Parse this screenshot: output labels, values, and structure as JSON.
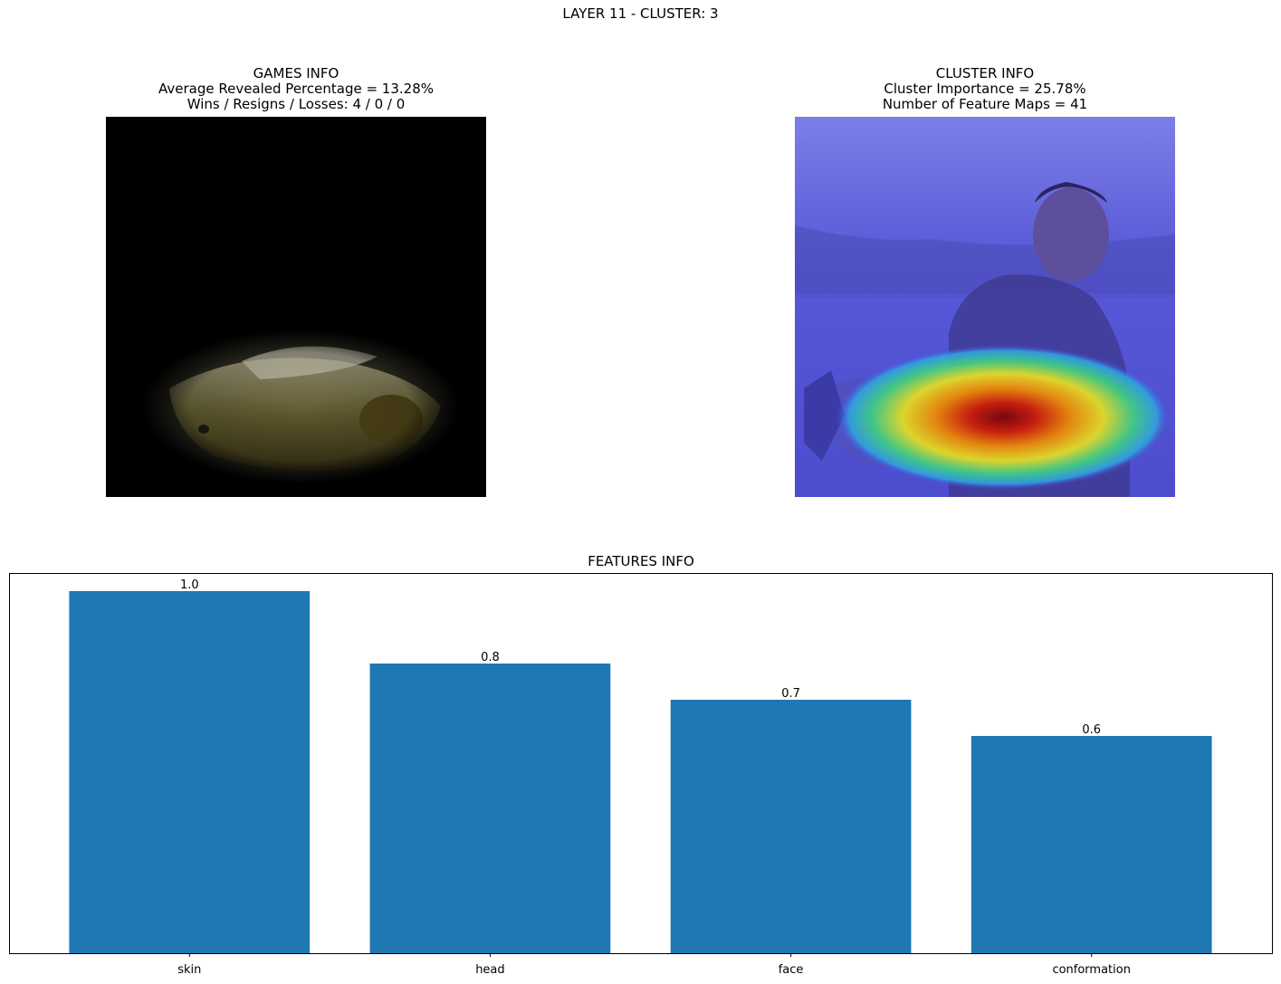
{
  "suptitle": "LAYER 11 - CLUSTER: 3",
  "games_info": {
    "title": "GAMES INFO",
    "line1": "Average Revealed Percentage = 13.28%",
    "line2": "Wins / Resigns / Losses: 4 / 0 / 0"
  },
  "cluster_info": {
    "title": "CLUSTER INFO",
    "line1": "Cluster Importance = 25.78%",
    "line2": "Number of Feature Maps = 41"
  },
  "colors": {
    "bar": "#1f77b4",
    "heat_overlay": "#3a3aff"
  },
  "chart_data": {
    "type": "bar",
    "title": "FEATURES INFO",
    "categories": [
      "skin",
      "head",
      "face",
      "conformation"
    ],
    "values": [
      1.0,
      0.8,
      0.7,
      0.6
    ],
    "data_labels": [
      "1.0",
      "0.8",
      "0.7",
      "0.6"
    ],
    "ylim": [
      0,
      1.05
    ],
    "yticks_visible": false,
    "grid": false,
    "legend": "none"
  }
}
